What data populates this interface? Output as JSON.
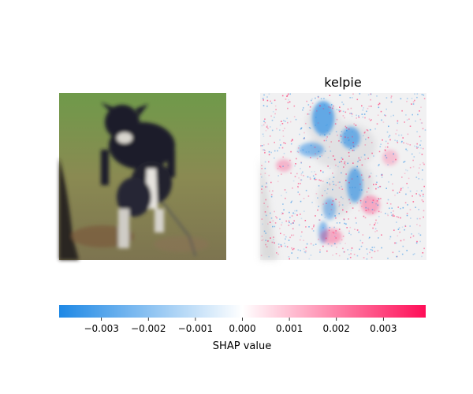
{
  "chart_data": {
    "type": "heatmap",
    "panels": [
      {
        "name": "input-image",
        "title": ""
      },
      {
        "name": "shap-map",
        "title": "kelpie"
      }
    ],
    "colorbar": {
      "label": "SHAP value",
      "ticks": [
        -0.003,
        -0.002,
        -0.001,
        0.0,
        0.001,
        0.002,
        0.003
      ],
      "tick_labels": [
        "−0.003",
        "−0.002",
        "−0.001",
        "0.000",
        "0.001",
        "0.002",
        "0.003"
      ],
      "range": [
        -0.0039,
        0.0039
      ],
      "colors": {
        "negative": "#1e88e5",
        "zero": "#ffffff",
        "positive": "#ff0d57"
      }
    }
  }
}
